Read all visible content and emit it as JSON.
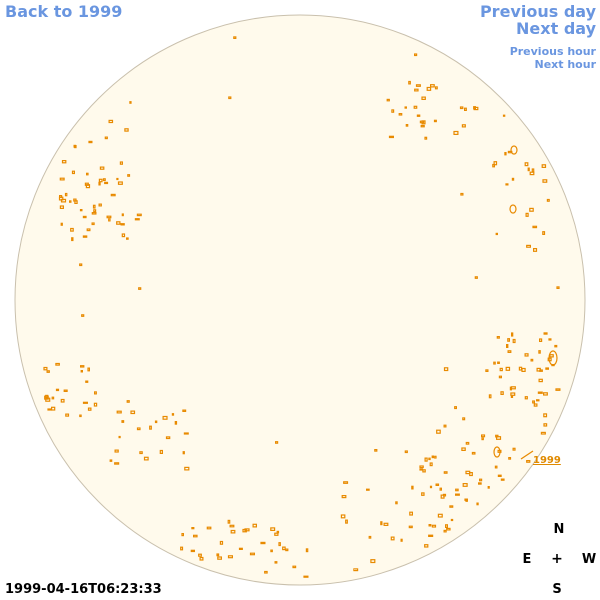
{
  "navigation": {
    "back_label": "Back to 1999",
    "prev_day_label": "Previous day",
    "next_day_label": "Next day",
    "prev_hour_label": "Previous hour",
    "next_hour_label": "Next hour"
  },
  "compass": {
    "north": "N",
    "east": "E",
    "center": "+",
    "west": "W",
    "south": "S"
  },
  "timestamp": "1999-04-16T06:23:33",
  "sky_map": {
    "background_color": "#fffaec",
    "rim_color": "#c9c0ad",
    "contour_color": "#e88a00",
    "link_color": "#6a96e0",
    "trail_label": "1999"
  }
}
